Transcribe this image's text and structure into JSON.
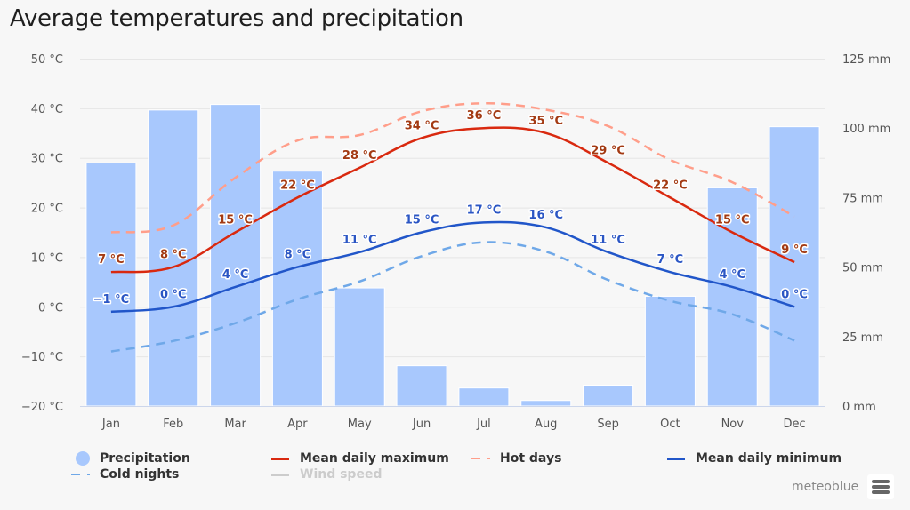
{
  "header": {
    "title": "Average temperatures and precipitation"
  },
  "chart_data": {
    "type": "bar+line",
    "title": "Average temperatures and precipitation",
    "categories": [
      "Jan",
      "Feb",
      "Mar",
      "Apr",
      "May",
      "Jun",
      "Jul",
      "Aug",
      "Sep",
      "Oct",
      "Nov",
      "Dec"
    ],
    "y_left": {
      "label": "",
      "unit": "°C",
      "range": [
        -20,
        50
      ],
      "ticks": [
        "50 °C",
        "40 °C",
        "30 °C",
        "20 °C",
        "10 °C",
        "0 °C",
        "−10 °C",
        "−20 °C"
      ],
      "tick_values": [
        50,
        40,
        30,
        20,
        10,
        0,
        -10,
        -20
      ]
    },
    "y_right": {
      "label": "",
      "unit": "mm",
      "range": [
        0,
        125
      ],
      "ticks": [
        "125 mm",
        "100 mm",
        "75 mm",
        "50 mm",
        "25 mm",
        "0 mm"
      ],
      "tick_values": [
        125,
        100,
        75,
        50,
        25,
        0
      ]
    },
    "grid": true,
    "legend_position": "bottom",
    "series": [
      {
        "name": "Precipitation",
        "type": "bar",
        "axis": "right",
        "color": "#a8c8fd",
        "values": [
          87.5,
          106.5,
          108.5,
          84.5,
          42.5,
          14.5,
          6.5,
          2,
          7.5,
          39.5,
          78.5,
          100.5
        ]
      },
      {
        "name": "Mean daily maximum",
        "type": "line",
        "axis": "left",
        "color": "#d9290f",
        "label_color": "#a33a13",
        "dash": false,
        "show_labels": true,
        "values": [
          7,
          8,
          15,
          22,
          28,
          34,
          36,
          35,
          29,
          22,
          15,
          9
        ],
        "labels": [
          "7 °C",
          "8 °C",
          "15 °C",
          "22 °C",
          "28 °C",
          "34 °C",
          "36 °C",
          "35 °C",
          "29 °C",
          "22 °C",
          "15 °C",
          "9 °C"
        ]
      },
      {
        "name": "Hot days",
        "type": "line",
        "axis": "left",
        "color": "#ff9e8a",
        "dash": true,
        "show_labels": false,
        "values": [
          15,
          16.4,
          26,
          33.5,
          34.6,
          39.4,
          41,
          39.7,
          36.4,
          29.6,
          25.1,
          18.2
        ]
      },
      {
        "name": "Mean daily minimum",
        "type": "line",
        "axis": "left",
        "color": "#2156c9",
        "label_color": "#2b56c4",
        "dash": false,
        "show_labels": true,
        "values": [
          -1,
          0,
          4,
          8,
          11,
          15,
          17,
          16,
          11,
          7,
          4,
          0
        ],
        "labels": [
          "−1 °C",
          "0 °C",
          "4 °C",
          "8 °C",
          "11 °C",
          "15 °C",
          "17 °C",
          "16 °C",
          "11 °C",
          "7 °C",
          "4 °C",
          "0 °C"
        ]
      },
      {
        "name": "Cold nights",
        "type": "line",
        "axis": "left",
        "color": "#6fa8e8",
        "dash": true,
        "show_labels": false,
        "values": [
          -9,
          -6.9,
          -3.3,
          1.5,
          5.1,
          10.2,
          13,
          11.1,
          5.4,
          1.2,
          -1.5,
          -6.8
        ]
      },
      {
        "name": "Wind speed",
        "type": "line",
        "axis": "left",
        "color": "#cccccc",
        "hidden": true,
        "values": []
      }
    ]
  },
  "legend": {
    "items": [
      {
        "label": "Precipitation",
        "symbol": "circle",
        "color": "#a8c8fd",
        "enabled": true
      },
      {
        "label": "Mean daily maximum",
        "symbol": "line",
        "color": "#d9290f",
        "enabled": true
      },
      {
        "label": "Hot days",
        "symbol": "dash",
        "color": "#ff9e8a",
        "enabled": true
      },
      {
        "label": "Mean daily minimum",
        "symbol": "line",
        "color": "#2156c9",
        "enabled": true
      },
      {
        "label": "Cold nights",
        "symbol": "dash",
        "color": "#6fa8e8",
        "enabled": true
      },
      {
        "label": "Wind speed",
        "symbol": "line",
        "color": "#cccccc",
        "enabled": false
      }
    ]
  },
  "footer": {
    "brand": "meteoblue",
    "menu_icon": "hamburger-menu-icon"
  }
}
